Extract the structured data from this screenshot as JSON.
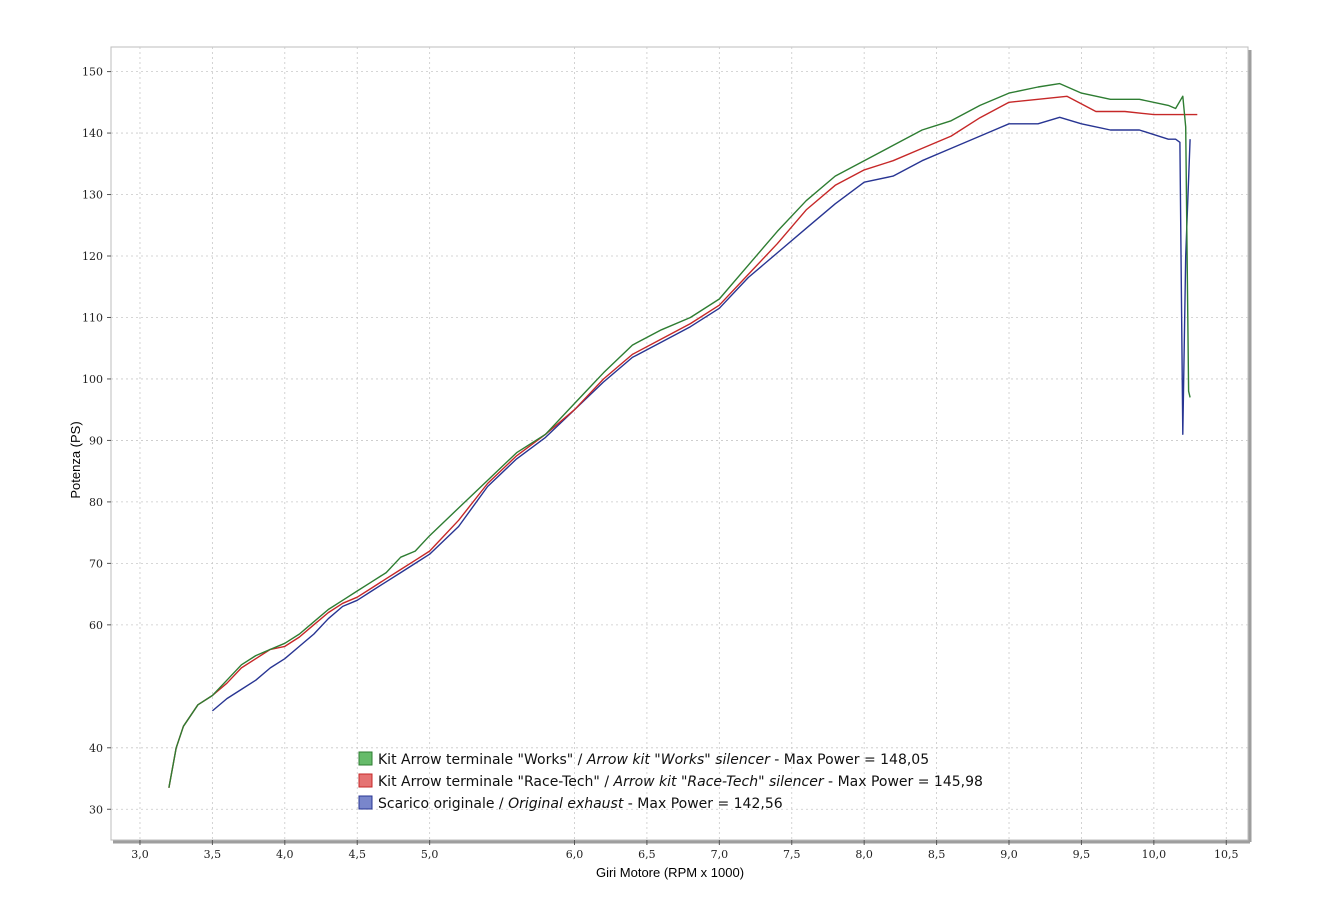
{
  "chart_data": {
    "type": "line",
    "title": "",
    "xlabel": "Giri Motore (RPM x 1000)",
    "ylabel": "Potenza (PS)",
    "xlim": [
      2.8,
      10.65
    ],
    "ylim": [
      25,
      154
    ],
    "x_ticks": [
      "3,0",
      "3,5",
      "4,0",
      "4,5",
      "5,0",
      "6,0",
      "6,5",
      "7,0",
      "7,5",
      "8,0",
      "8,5",
      "9,0",
      "9,5",
      "10,0",
      "10,5"
    ],
    "x_tick_values": [
      3.0,
      3.5,
      4.0,
      4.5,
      5.0,
      6.0,
      6.5,
      7.0,
      7.5,
      8.0,
      8.5,
      9.0,
      9.5,
      10.0,
      10.5
    ],
    "y_ticks": [
      "30",
      "40",
      "60",
      "70",
      "80",
      "90",
      "100",
      "110",
      "120",
      "130",
      "140",
      "150"
    ],
    "y_tick_values": [
      30,
      40,
      60,
      70,
      80,
      90,
      100,
      110,
      120,
      130,
      140,
      150
    ],
    "grid": true,
    "legend_position": "bottom-center",
    "series": [
      {
        "name": "Kit Arrow terminale \"Works\"",
        "name_en": "Arrow kit \"Works\" silencer",
        "max_label": "Max Power = 148,05",
        "color": "#2e7d32",
        "x": [
          3.2,
          3.25,
          3.3,
          3.4,
          3.5,
          3.6,
          3.7,
          3.8,
          3.9,
          4.0,
          4.1,
          4.2,
          4.3,
          4.4,
          4.5,
          4.6,
          4.7,
          4.8,
          4.9,
          5.0,
          5.2,
          5.4,
          5.6,
          5.8,
          6.0,
          6.2,
          6.4,
          6.6,
          6.8,
          7.0,
          7.2,
          7.4,
          7.6,
          7.8,
          8.0,
          8.2,
          8.4,
          8.6,
          8.8,
          9.0,
          9.2,
          9.35,
          9.5,
          9.7,
          9.9,
          10.1,
          10.15,
          10.2,
          10.22,
          10.24,
          10.25
        ],
        "y": [
          33.5,
          40,
          43.5,
          47,
          48.5,
          51,
          53.5,
          55,
          56,
          57,
          58.5,
          60.5,
          62.5,
          64,
          65.5,
          67,
          68.5,
          71,
          72,
          74.5,
          79,
          83.5,
          88,
          91,
          96,
          101,
          105.5,
          108,
          110,
          113,
          118.5,
          124,
          129,
          133,
          135.5,
          138,
          140.5,
          142,
          144.5,
          146.5,
          147.5,
          148.05,
          146.5,
          145.5,
          145.5,
          144.5,
          144,
          146,
          141,
          98,
          97
        ]
      },
      {
        "name": "Kit Arrow terminale \"Race-Tech\"",
        "name_en": "Arrow kit \"Race-Tech\" silencer",
        "max_label": "Max Power = 145,98",
        "color": "#c62828",
        "x": [
          3.2,
          3.25,
          3.3,
          3.4,
          3.5,
          3.6,
          3.7,
          3.8,
          3.9,
          4.0,
          4.1,
          4.2,
          4.3,
          4.4,
          4.5,
          4.6,
          4.7,
          4.8,
          4.9,
          5.0,
          5.2,
          5.4,
          5.6,
          5.8,
          6.0,
          6.2,
          6.4,
          6.6,
          6.8,
          7.0,
          7.2,
          7.4,
          7.6,
          7.8,
          8.0,
          8.2,
          8.4,
          8.6,
          8.8,
          9.0,
          9.2,
          9.4,
          9.6,
          9.8,
          10.0,
          10.15,
          10.25,
          10.3
        ],
        "y": [
          33.5,
          40,
          43.5,
          47,
          48.5,
          50.5,
          53,
          54.5,
          56,
          56.5,
          58,
          60,
          62,
          63.5,
          64.5,
          66,
          67.5,
          69,
          70.5,
          72,
          77,
          83,
          87.5,
          91,
          95,
          100,
          104,
          106.5,
          109,
          112,
          117,
          122,
          127.5,
          131.5,
          134,
          135.5,
          137.5,
          139.5,
          142.5,
          145,
          145.5,
          145.98,
          143.5,
          143.5,
          143,
          143,
          143,
          143
        ]
      },
      {
        "name": "Scarico originale",
        "name_en": "Original exhaust",
        "max_label": "Max Power = 142,56",
        "color": "#283593",
        "x": [
          3.5,
          3.6,
          3.7,
          3.8,
          3.9,
          4.0,
          4.1,
          4.2,
          4.3,
          4.4,
          4.5,
          4.6,
          4.7,
          4.8,
          4.9,
          5.0,
          5.2,
          5.4,
          5.6,
          5.8,
          6.0,
          6.2,
          6.4,
          6.6,
          6.8,
          7.0,
          7.2,
          7.4,
          7.6,
          7.8,
          8.0,
          8.2,
          8.4,
          8.6,
          8.8,
          9.0,
          9.2,
          9.35,
          9.5,
          9.7,
          9.9,
          10.1,
          10.15,
          10.18,
          10.2,
          10.22,
          10.25
        ],
        "y": [
          46,
          48,
          49.5,
          51,
          53,
          54.5,
          56.5,
          58.5,
          61,
          63,
          64,
          65.5,
          67,
          68.5,
          70,
          71.5,
          76,
          82.5,
          87,
          90.5,
          95,
          99.5,
          103.5,
          106,
          108.5,
          111.5,
          116.5,
          120.5,
          124.5,
          128.5,
          132,
          133,
          135.5,
          137.5,
          139.5,
          141.5,
          141.5,
          142.56,
          141.5,
          140.5,
          140.5,
          139,
          139,
          138.5,
          91,
          120,
          139
        ]
      }
    ]
  }
}
